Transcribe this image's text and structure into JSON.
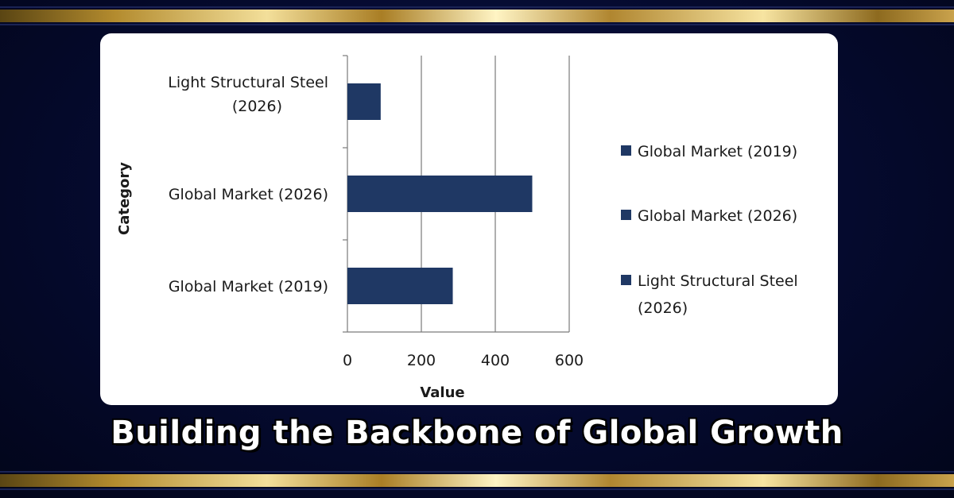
{
  "headline": "Building the Backbone of Global Growth",
  "colors": {
    "bar": "#1f3864",
    "background": "#050a2e",
    "gold": "#d4af37"
  },
  "chart_data": {
    "type": "bar",
    "orientation": "horizontal",
    "categories": [
      "Light Structural Steel (2026)",
      "Global Market (2026)",
      "Global Market (2019)"
    ],
    "values": [
      90,
      500,
      285
    ],
    "xlabel": "Value",
    "ylabel": "Category",
    "xlim": [
      0,
      600
    ],
    "xticks": [
      "0",
      "200",
      "400",
      "600"
    ],
    "grid": "vertical",
    "legend_position": "right",
    "legend": [
      "Global Market (2019)",
      "Global Market (2026)",
      "Light Structural Steel (2026)"
    ]
  }
}
